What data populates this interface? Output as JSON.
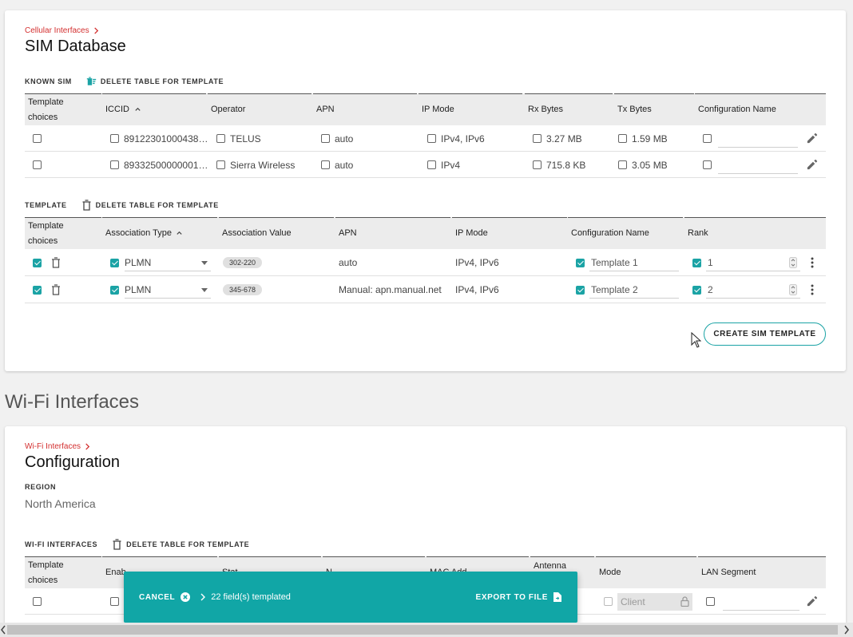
{
  "sim": {
    "breadcrumb": "Cellular Interfaces",
    "title": "SIM Database",
    "known": {
      "section_label": "KNOWN SIM",
      "delete_label": "DELETE TABLE FOR TEMPLATE",
      "headers": {
        "choices_1": "Template",
        "choices_2": "choices",
        "iccid": "ICCID",
        "operator": "Operator",
        "apn": "APN",
        "ip_mode": "IP Mode",
        "rx": "Rx Bytes",
        "tx": "Tx Bytes",
        "config": "Configuration Name"
      },
      "rows": [
        {
          "iccid": "8912230100043885…",
          "operator": "TELUS",
          "apn": "auto",
          "ip_mode": "IPv4, IPv6",
          "rx": "3.27 MB",
          "tx": "1.59 MB"
        },
        {
          "iccid": "8933250000000101…",
          "operator": "Sierra Wireless",
          "apn": "auto",
          "ip_mode": "IPv4",
          "rx": "715.8 KB",
          "tx": "3.05 MB"
        }
      ]
    },
    "template": {
      "section_label": "TEMPLATE",
      "delete_label": "DELETE TABLE FOR TEMPLATE",
      "headers": {
        "choices_1": "Template",
        "choices_2": "choices",
        "assoc_type": "Association Type",
        "assoc_value": "Association Value",
        "apn": "APN",
        "ip_mode": "IP Mode",
        "config": "Configuration Name",
        "rank": "Rank"
      },
      "rows": [
        {
          "assoc_type": "PLMN",
          "assoc_value": "302-220",
          "apn": "auto",
          "ip_mode": "IPv4, IPv6",
          "config": "Template 1",
          "rank": "1"
        },
        {
          "assoc_type": "PLMN",
          "assoc_value": "345-678",
          "apn": "Manual: apn.manual.net",
          "ip_mode": "IPv4, IPv6",
          "config": "Template 2",
          "rank": "2"
        }
      ]
    },
    "create_button": "CREATE SIM TEMPLATE"
  },
  "wifi": {
    "section_heading": "Wi-Fi Interfaces",
    "breadcrumb": "Wi-Fi Interfaces",
    "title": "Configuration",
    "region_label": "REGION",
    "region_value": "North America",
    "table": {
      "section_label": "WI-FI INTERFACES",
      "delete_label": "DELETE TABLE FOR TEMPLATE",
      "headers": {
        "choices_1": "Template",
        "choices_2": "choices",
        "enable": "Enab",
        "state": "Stat",
        "name": "N",
        "mac": "MAC Add",
        "antenna": "Antenna",
        "mode": "Mode",
        "lan": "LAN Segment"
      },
      "row_mode_value": "Client"
    }
  },
  "snackbar": {
    "cancel_label": "CANCEL",
    "count_text": "22 field(s) templated",
    "export_label": "EXPORT TO FILE"
  },
  "colors": {
    "accent": "#1ba3a5",
    "breadcrumb": "#d32f2f",
    "snackbar_bg": "#11a6a6"
  }
}
